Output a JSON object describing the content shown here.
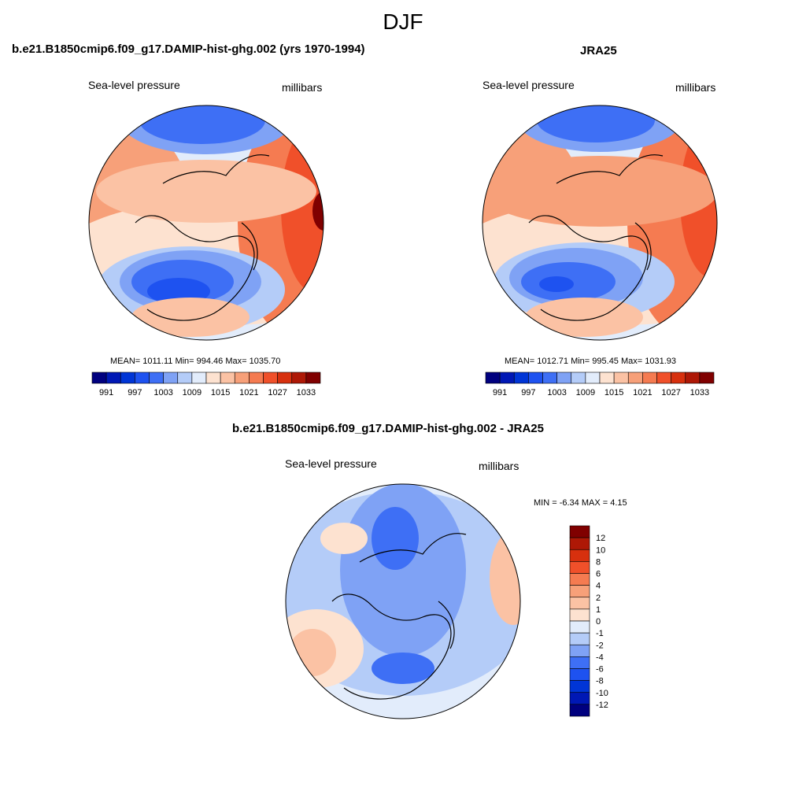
{
  "figure": {
    "title": "DJF"
  },
  "panels": [
    {
      "title": "b.e21.B1850cmip6.f09_g17.DAMIP-hist-ghg.002 (yrs 1970-1994)",
      "left_label": "Sea-level pressure",
      "right_label": "millibars",
      "stats": "MEAN= 1011.11  Min= 994.46  Max= 1035.70",
      "colorbar_ticks": [
        "991",
        "997",
        "1003",
        "1009",
        "1015",
        "1021",
        "1027",
        "1033"
      ]
    },
    {
      "title": "JRA25",
      "left_label": "Sea-level pressure",
      "right_label": "millibars",
      "stats": "MEAN= 1012.71  Min= 995.45  Max= 1031.93",
      "colorbar_ticks": [
        "991",
        "997",
        "1003",
        "1009",
        "1015",
        "1021",
        "1027",
        "1033"
      ]
    },
    {
      "title": "b.e21.B1850cmip6.f09_g17.DAMIP-hist-ghg.002 - JRA25",
      "left_label": "Sea-level pressure",
      "right_label": "millibars",
      "stats": "MIN =  -6.34 MAX =   4.15",
      "colorbar_ticks": [
        "12",
        "10",
        "8",
        "6",
        "4",
        "2",
        "1",
        "0",
        "-1",
        "-2",
        "-4",
        "-6",
        "-8",
        "-10",
        "-12"
      ]
    }
  ],
  "chart_data": [
    {
      "type": "heatmap",
      "projection": "north polar stereographic",
      "title": "b.e21.B1850cmip6.f09_g17.DAMIP-hist-ghg.002 (yrs 1970-1994)",
      "variable": "Sea-level pressure",
      "units": "millibars",
      "mean": 1011.11,
      "min": 994.46,
      "max": 1035.7,
      "levels": [
        991,
        994,
        997,
        1000,
        1003,
        1006,
        1009,
        1012,
        1015,
        1018,
        1021,
        1024,
        1027,
        1030,
        1033
      ],
      "colors": [
        "#00007f",
        "#0018b5",
        "#0035d6",
        "#1e52f0",
        "#3e6ff5",
        "#7fa2f5",
        "#b4ccf8",
        "#e2ecfb",
        "#fde2d0",
        "#fbc2a4",
        "#f7a079",
        "#f57b51",
        "#f0502a",
        "#d7300e",
        "#ae1806",
        "#800000"
      ]
    },
    {
      "type": "heatmap",
      "projection": "north polar stereographic",
      "title": "JRA25",
      "variable": "Sea-level pressure",
      "units": "millibars",
      "mean": 1012.71,
      "min": 995.45,
      "max": 1031.93,
      "levels": [
        991,
        994,
        997,
        1000,
        1003,
        1006,
        1009,
        1012,
        1015,
        1018,
        1021,
        1024,
        1027,
        1030,
        1033
      ],
      "colors": [
        "#00007f",
        "#0018b5",
        "#0035d6",
        "#1e52f0",
        "#3e6ff5",
        "#7fa2f5",
        "#b4ccf8",
        "#e2ecfb",
        "#fde2d0",
        "#fbc2a4",
        "#f7a079",
        "#f57b51",
        "#f0502a",
        "#d7300e",
        "#ae1806",
        "#800000"
      ]
    },
    {
      "type": "heatmap",
      "projection": "north polar stereographic",
      "title": "b.e21.B1850cmip6.f09_g17.DAMIP-hist-ghg.002 - JRA25",
      "variable": "Sea-level pressure",
      "units": "millibars",
      "min": -6.34,
      "max": 4.15,
      "levels": [
        -12,
        -10,
        -8,
        -6,
        -4,
        -2,
        -1,
        0,
        1,
        2,
        4,
        6,
        8,
        10,
        12
      ],
      "colors": [
        "#00007f",
        "#0018b5",
        "#0035d6",
        "#1e52f0",
        "#3e6ff5",
        "#7fa2f5",
        "#b4ccf8",
        "#e2ecfb",
        "#fde2d0",
        "#fbc2a4",
        "#f7a079",
        "#f57b51",
        "#f0502a",
        "#d7300e",
        "#ae1806",
        "#800000"
      ]
    }
  ]
}
